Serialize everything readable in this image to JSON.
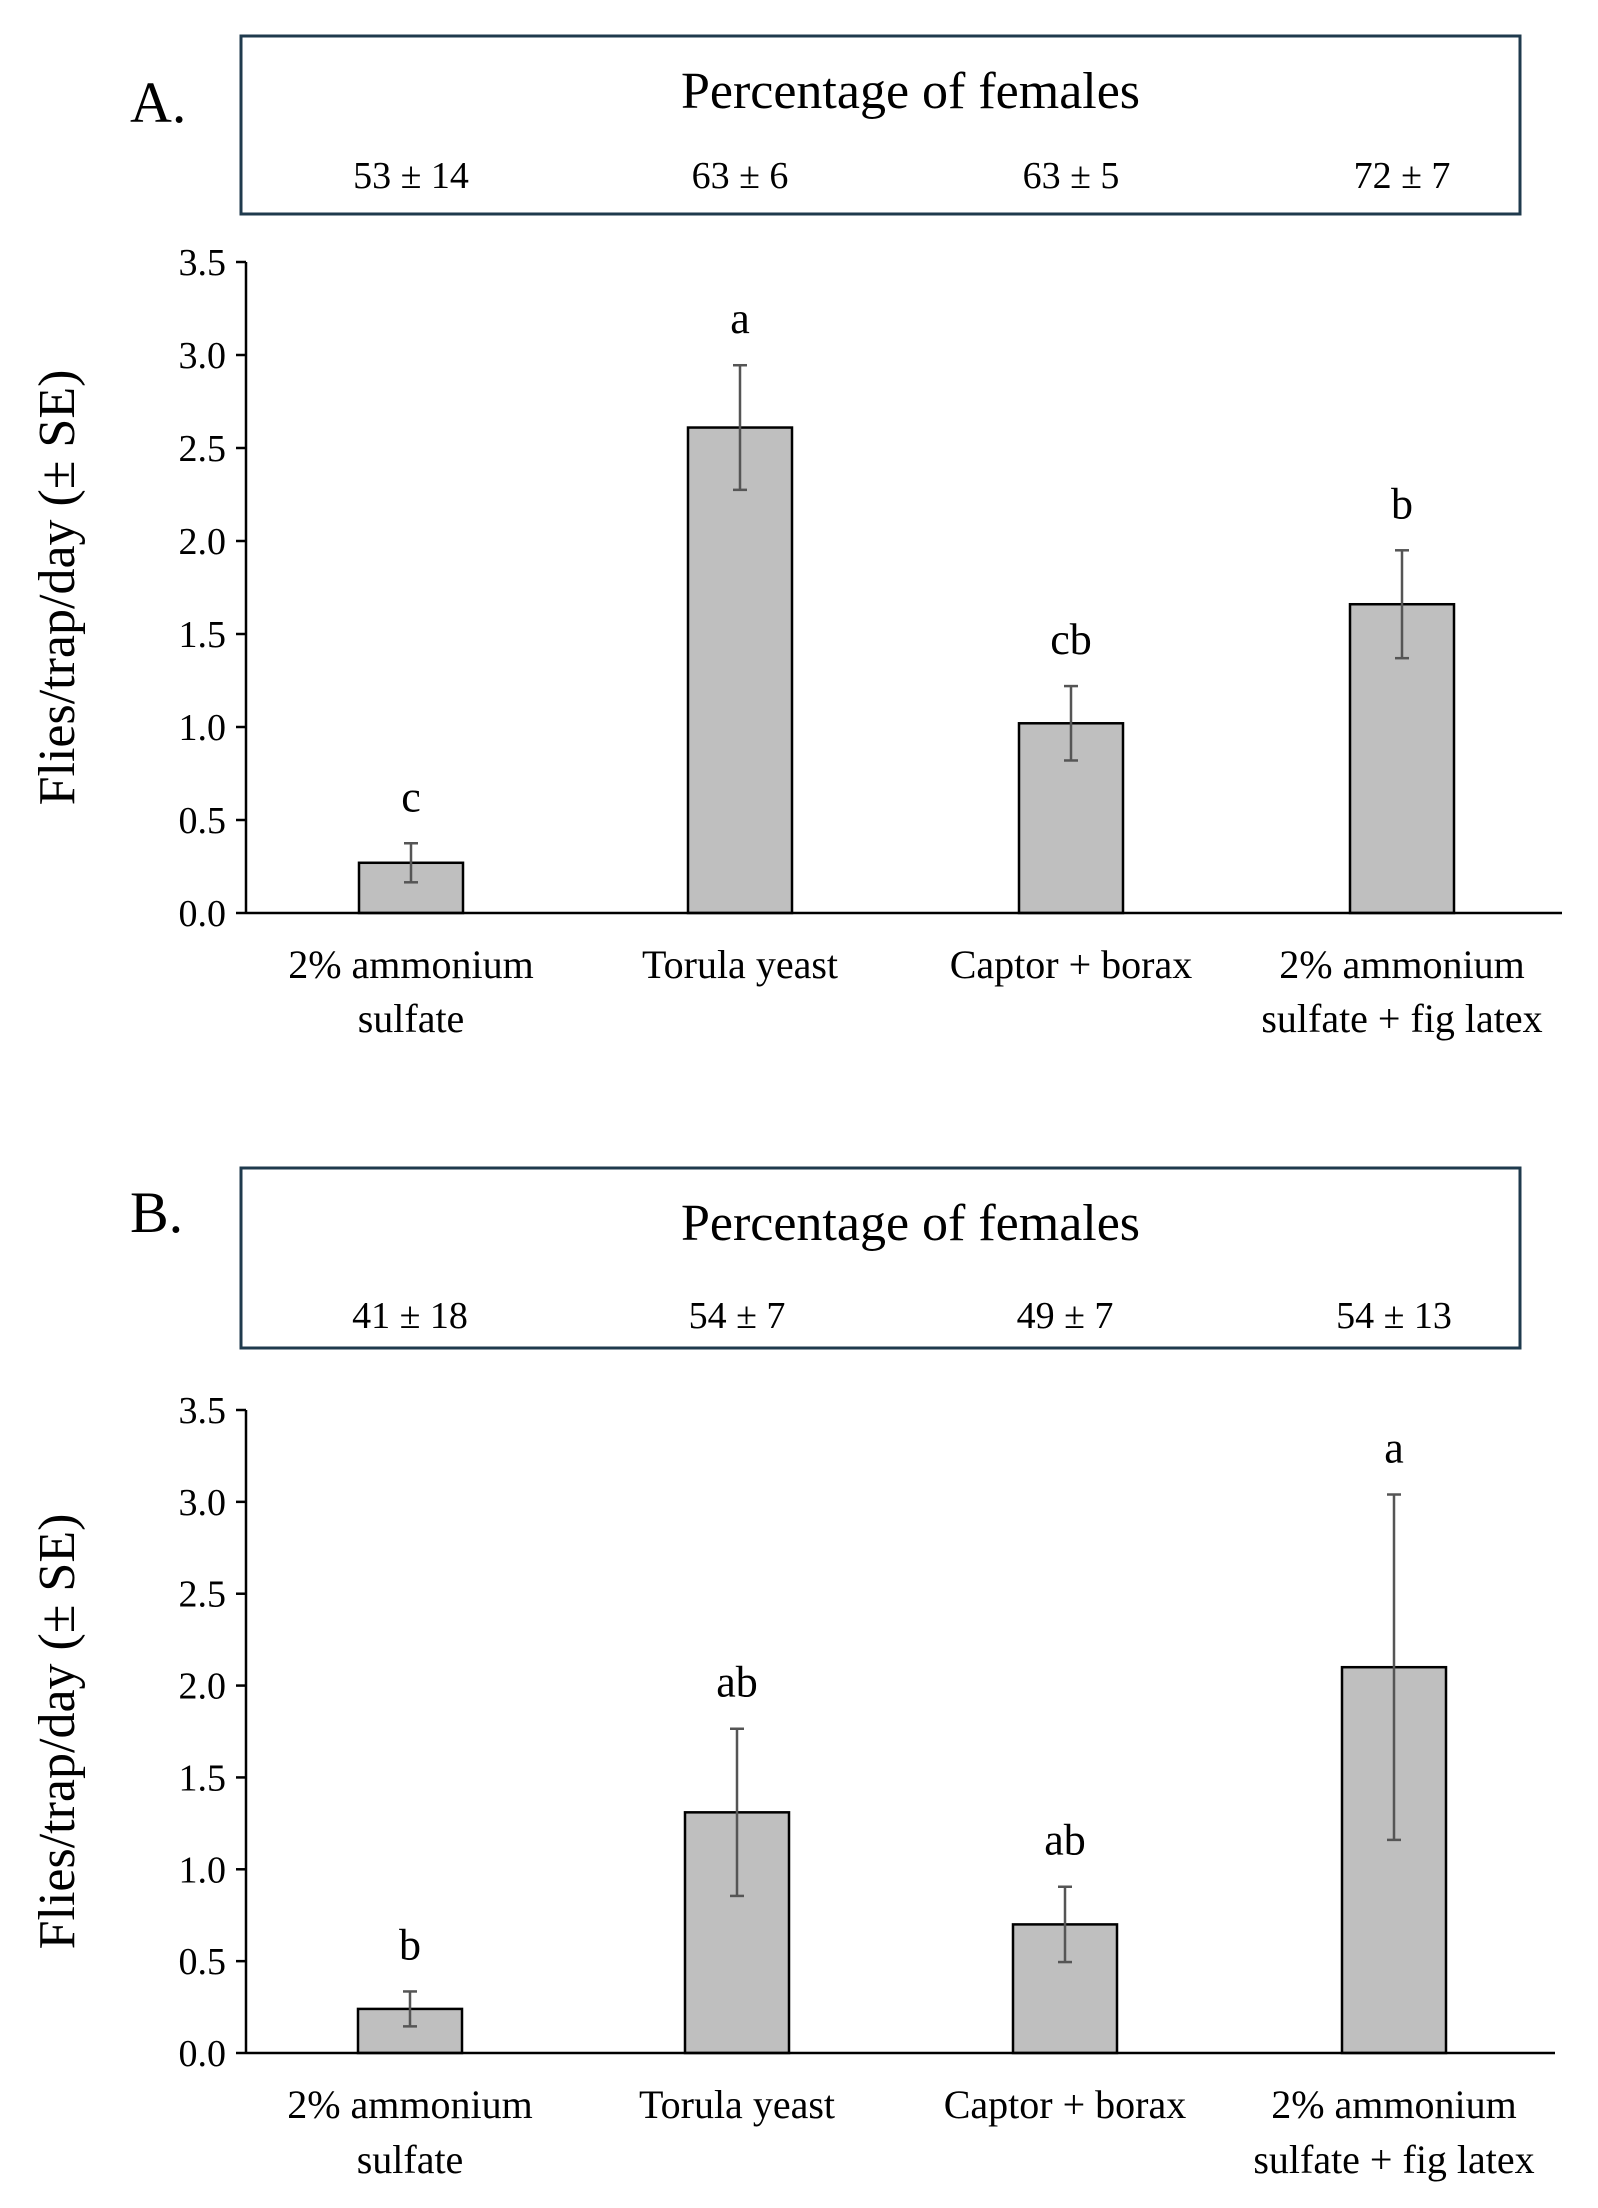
{
  "chart_data": [
    {
      "type": "bar",
      "panel_label": "A.",
      "header": {
        "title": "Percentage of females",
        "values": [
          "53 ± 14",
          "63 ± 6",
          "63 ± 5",
          "72 ± 7"
        ]
      },
      "categories": [
        [
          "2% ammonium",
          "sulfate"
        ],
        [
          "Torula yeast"
        ],
        [
          "Captor + borax"
        ],
        [
          "2% ammonium",
          "sulfate + fig latex"
        ]
      ],
      "values": [
        0.27,
        2.61,
        1.02,
        1.66
      ],
      "errors": [
        0.105,
        0.335,
        0.2,
        0.29
      ],
      "letters": [
        "c",
        "a",
        "cb",
        "b"
      ],
      "ylabel": "Flies/trap/day (± SE)",
      "ylim": [
        0,
        3.5
      ],
      "yticks": [
        "0.0",
        "0.5",
        "1.0",
        "1.5",
        "2.0",
        "2.5",
        "3.0",
        "3.5"
      ],
      "bar_color": "#bfbfbf"
    },
    {
      "type": "bar",
      "panel_label": "B.",
      "header": {
        "title": "Percentage of females",
        "values": [
          "41 ± 18",
          "54 ± 7",
          "49 ± 7",
          "54 ± 13"
        ]
      },
      "categories": [
        [
          "2% ammonium",
          "sulfate"
        ],
        [
          "Torula yeast"
        ],
        [
          "Captor + borax"
        ],
        [
          "2% ammonium",
          "sulfate + fig latex"
        ]
      ],
      "values": [
        0.24,
        1.31,
        0.7,
        2.1
      ],
      "errors": [
        0.095,
        0.455,
        0.205,
        0.94
      ],
      "letters": [
        "b",
        "ab",
        "ab",
        "a"
      ],
      "ylabel": "Flies/trap/day (± SE)",
      "ylim": [
        0,
        3.5
      ],
      "yticks": [
        "0.0",
        "0.5",
        "1.0",
        "1.5",
        "2.0",
        "2.5",
        "3.0",
        "3.5"
      ],
      "bar_color": "#bfbfbf"
    }
  ]
}
